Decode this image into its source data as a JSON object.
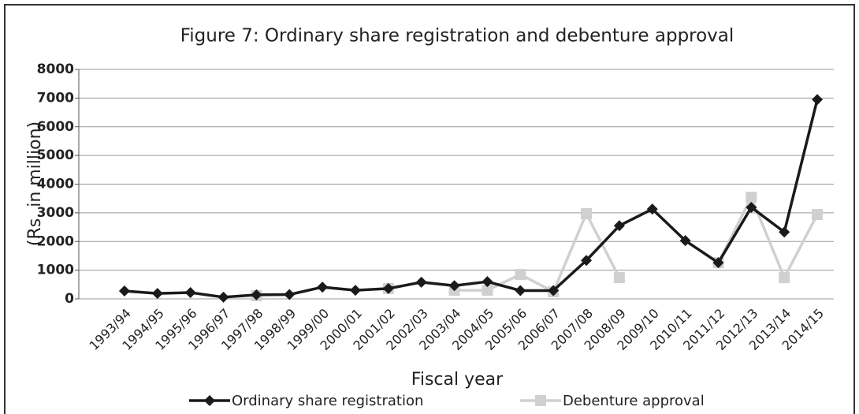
{
  "chart_data": {
    "type": "line",
    "title": "Figure 7: Ordinary share registration and debenture approval",
    "ylabel": "(Rs. in million)",
    "xlabel": "Fiscal year",
    "categories": [
      "1993/94",
      "1994/95",
      "1995/96",
      "1996/97",
      "1997/98",
      "1998/99",
      "1999/00",
      "2000/01",
      "2001/02",
      "2002/03",
      "2003/04",
      "2004/05",
      "2005/06",
      "2006/07",
      "2007/08",
      "2008/09",
      "2009/10",
      "2010/11",
      "2011/12",
      "2012/13",
      "2013/14",
      "2014/15"
    ],
    "series": [
      {
        "name": "Ordinary share registration",
        "color": "#1a1a1a",
        "marker": "diamond",
        "values": [
          275,
          190,
          220,
          60,
          140,
          150,
          410,
          300,
          360,
          580,
          460,
          600,
          290,
          290,
          1340,
          2550,
          3130,
          2030,
          1260,
          3190,
          2330,
          6950
        ]
      },
      {
        "name": "Debenture approval",
        "color": "#d0d0d0",
        "marker": "square",
        "values": [
          null,
          null,
          null,
          null,
          110,
          null,
          null,
          null,
          360,
          null,
          300,
          300,
          850,
          250,
          2970,
          740,
          null,
          null,
          1260,
          3540,
          740,
          2940
        ]
      }
    ],
    "ylim": [
      0,
      8000
    ],
    "yticks": [
      0,
      1000,
      2000,
      3000,
      4000,
      5000,
      6000,
      7000,
      8000
    ],
    "grid": true,
    "legend": "bottom"
  }
}
